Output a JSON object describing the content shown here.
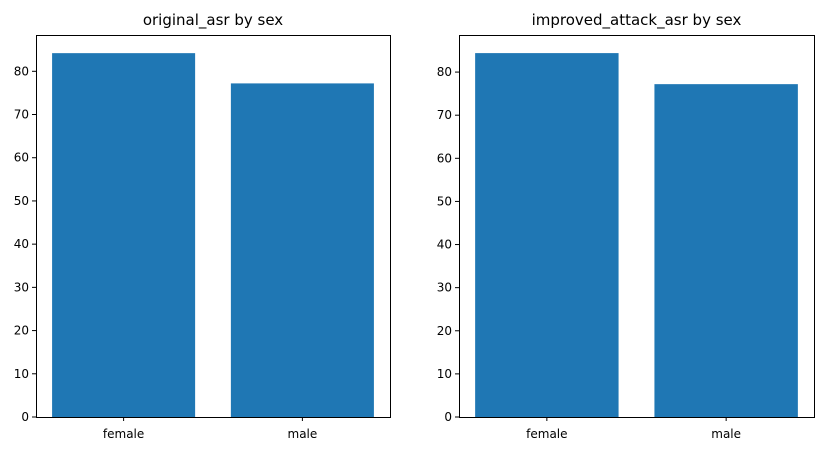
{
  "chart_data": [
    {
      "type": "bar",
      "title": "original_asr by sex",
      "categories": [
        "female",
        "male"
      ],
      "values": [
        84.2,
        77.2
      ],
      "xlabel": "",
      "ylabel": "",
      "ylim": [
        0,
        88.4
      ],
      "yticks": [
        0,
        10,
        20,
        30,
        40,
        50,
        60,
        70,
        80
      ],
      "bar_color": "#1f77b4",
      "grid": false
    },
    {
      "type": "bar",
      "title": "improved_attack_asr by sex",
      "categories": [
        "female",
        "male"
      ],
      "values": [
        84.4,
        77.2
      ],
      "xlabel": "",
      "ylabel": "",
      "ylim": [
        0,
        88.6
      ],
      "yticks": [
        0,
        10,
        20,
        30,
        40,
        50,
        60,
        70,
        80
      ],
      "bar_color": "#1f77b4",
      "grid": false
    }
  ]
}
